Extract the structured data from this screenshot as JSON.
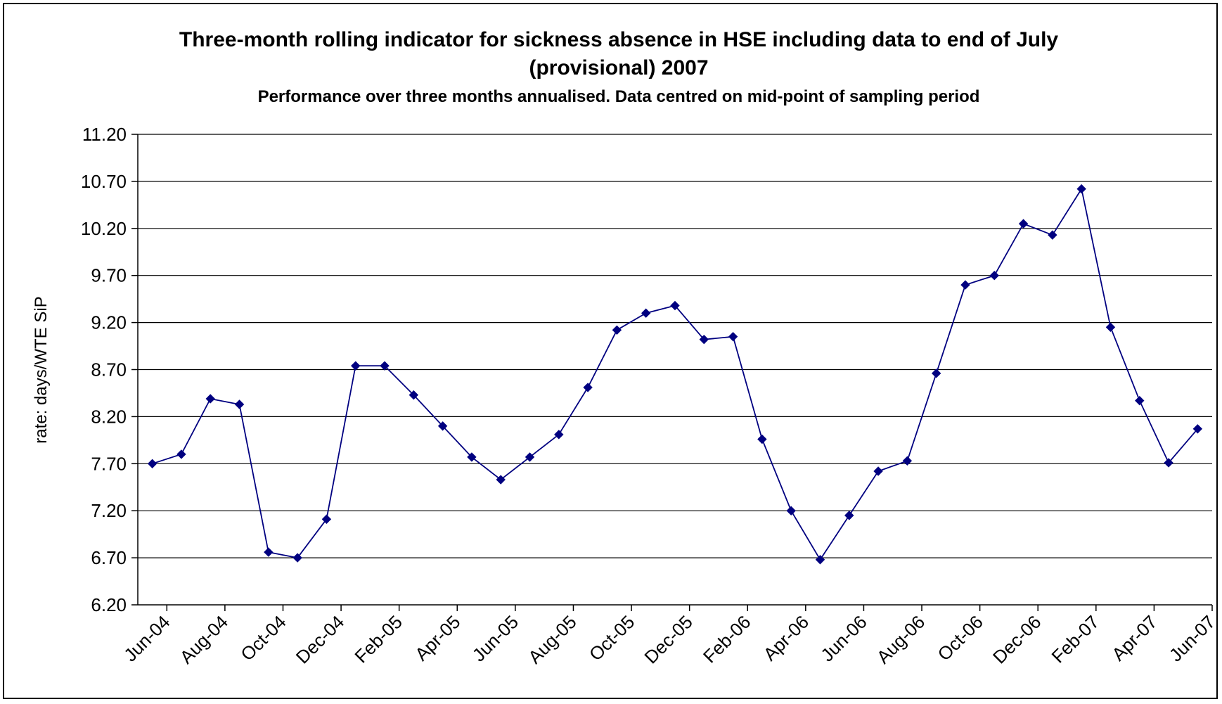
{
  "chart_data": {
    "type": "line",
    "title_line1": "Three-month rolling indicator for sickness absence in HSE including data to end of July",
    "title_line2": "(provisional) 2007",
    "subtitle": "Performance over three months annualised.  Data centred on mid-point of sampling period",
    "ylabel": "rate: days/WTE SiP",
    "xlabel": "",
    "ylim": [
      6.2,
      11.2
    ],
    "yticks": [
      "6.20",
      "6.70",
      "7.20",
      "7.70",
      "8.20",
      "8.70",
      "9.20",
      "9.70",
      "10.20",
      "10.70",
      "11.20"
    ],
    "xtick_labels": [
      "Jun-04",
      "Aug-04",
      "Oct-04",
      "Dec-04",
      "Feb-05",
      "Apr-05",
      "Jun-05",
      "Aug-05",
      "Oct-05",
      "Dec-05",
      "Feb-06",
      "Apr-06",
      "Jun-06",
      "Aug-06",
      "Oct-06",
      "Dec-06",
      "Feb-07",
      "Apr-07",
      "Jun-07"
    ],
    "grid": true,
    "legend": "none",
    "colors": {
      "line": "#000080",
      "marker": "#000080",
      "grid": "#000000"
    },
    "series": [
      {
        "values": [
          7.7,
          7.8,
          8.39,
          8.33,
          6.76,
          6.7,
          7.11,
          8.74,
          8.74,
          8.43,
          8.1,
          7.77,
          7.53,
          7.77,
          8.01,
          8.51,
          9.12,
          9.3,
          9.38,
          9.02,
          9.05,
          7.96,
          7.2,
          6.68,
          7.15,
          7.62,
          7.73,
          8.66,
          9.6,
          9.7,
          10.25,
          10.13,
          10.62,
          9.15,
          8.37,
          7.71,
          8.07
        ]
      }
    ]
  }
}
